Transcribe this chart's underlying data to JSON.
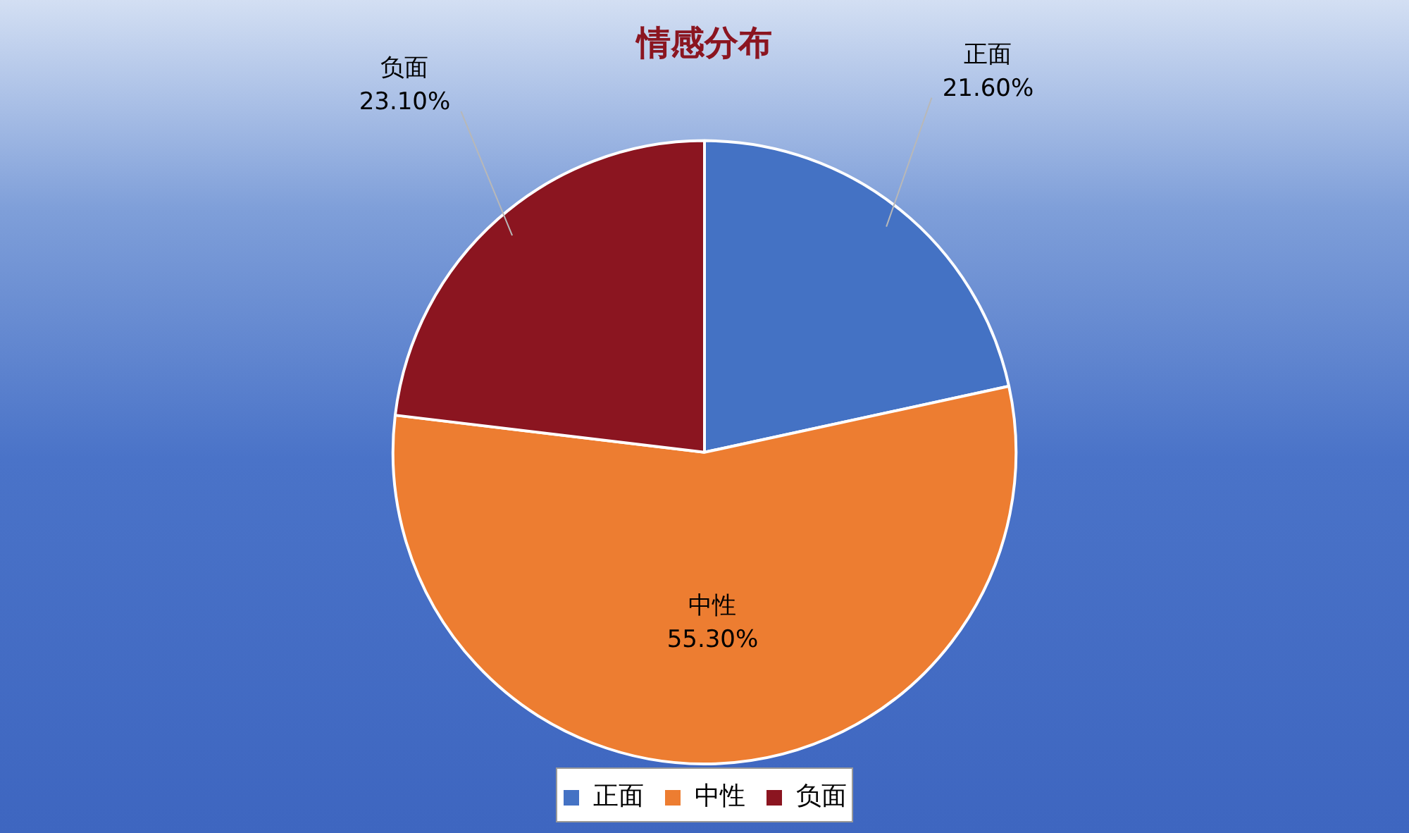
{
  "chart_data": {
    "type": "pie",
    "title": "情感分布",
    "categories": [
      "正面",
      "中性",
      "负面"
    ],
    "values": [
      21.6,
      55.3,
      23.1
    ],
    "colors": [
      "#4472c4",
      "#ed7d31",
      "#8b1520"
    ],
    "value_labels": [
      "21.60%",
      "55.30%",
      "23.10%"
    ],
    "legend": "bottom"
  }
}
